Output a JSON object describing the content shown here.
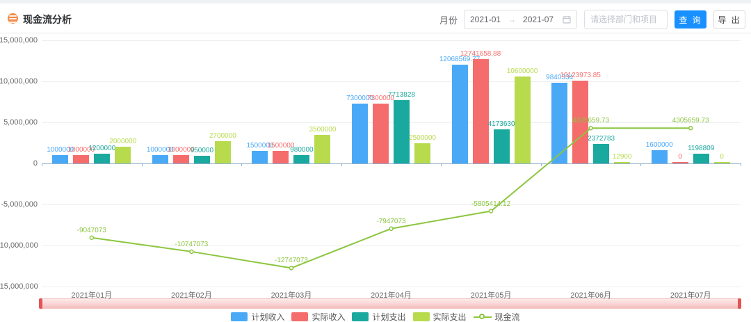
{
  "header": {
    "title": "现金流分析",
    "month_label": "月份",
    "date_start": "2021-01",
    "date_arrow": "→",
    "date_end": "2021-07",
    "project_placeholder": "请选择部门和项目",
    "query_button": "查 询",
    "export_button": "导 出"
  },
  "chart_data": {
    "type": "bar+line",
    "title": "现金流分析",
    "categories": [
      "2021年01月",
      "2021年02月",
      "2021年03月",
      "2021年04月",
      "2021年05月",
      "2021年06月",
      "2021年07月"
    ],
    "series": [
      {
        "name": "计划收入",
        "type": "bar",
        "color": "#49a9f7",
        "values": [
          1000000,
          1000000,
          1500000,
          7300000,
          12068569.77,
          9840334,
          1600000
        ]
      },
      {
        "name": "实际收入",
        "type": "bar",
        "color": "#f56c6c",
        "values": [
          1000000,
          1000000,
          1500000,
          7300000,
          12741658.88,
          10123973.85,
          0
        ]
      },
      {
        "name": "计划支出",
        "type": "bar",
        "color": "#1aa99e",
        "values": [
          1200000,
          950000,
          980000,
          7713828,
          4173630,
          2372783,
          1198809
        ]
      },
      {
        "name": "实际支出",
        "type": "bar",
        "color": "#b7db4d",
        "values": [
          2000000,
          2700000,
          3500000,
          2500000,
          10600000,
          12900,
          0
        ]
      },
      {
        "name": "现金流",
        "type": "line",
        "color": "#8cc63f",
        "values": [
          -9047073,
          -10747073,
          -12747073,
          -7947073,
          -5805414.12,
          4305659.73,
          4305659.73
        ]
      }
    ],
    "yticks": [
      "15,000,000",
      "10,000,000",
      "5,000,000",
      "0",
      "-5,000,000",
      "-10,000,000",
      "-15,000,000"
    ],
    "ytick_values": [
      15000000,
      10000000,
      5000000,
      0,
      -5000000,
      -10000000,
      -15000000
    ],
    "ylim": [
      -15000000,
      15000000
    ],
    "grid": true,
    "legend_position": "bottom",
    "xlabel": "",
    "ylabel": ""
  }
}
